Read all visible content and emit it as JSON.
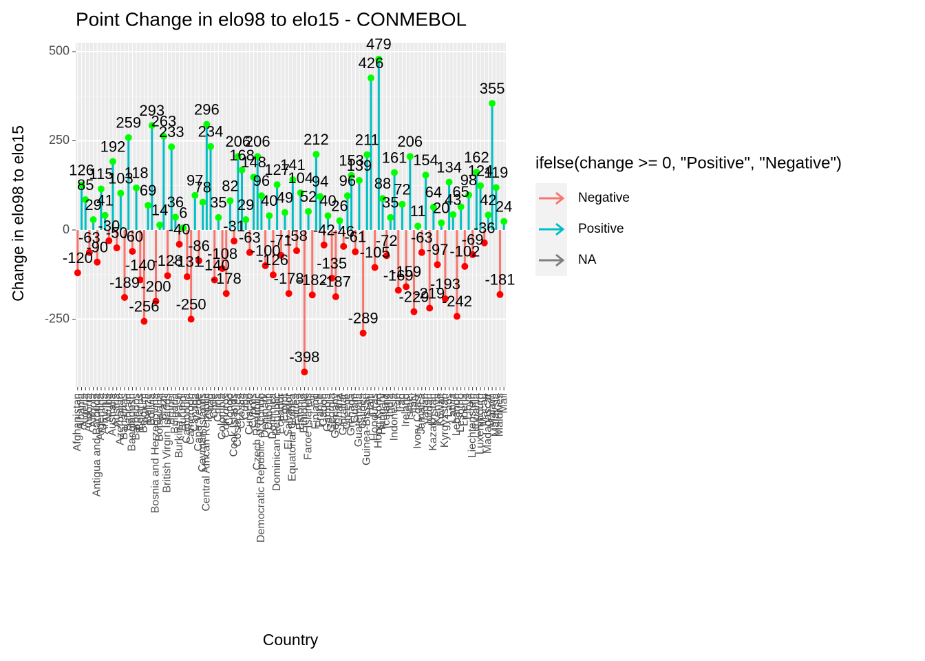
{
  "chart_data": {
    "type": "lollipop",
    "title": "Point Change in elo98 to elo15 - CONMEBOL",
    "x_label": "Country",
    "y_label": "Change in elo98 to elo15",
    "categories": [
      "Afghanistan",
      "Albania",
      "Algeria",
      "Andorra",
      "Angola",
      "Antigua and Barbuda",
      "Argentina",
      "Armenia",
      "Aruba",
      "Australia",
      "Austria",
      "Azerbaijan",
      "Bahamas",
      "Bahrain",
      "Bangladesh",
      "Barbados",
      "Belarus",
      "Belgium",
      "Belize",
      "Bolivia",
      "Bosnia and Herzegovina",
      "Botswana",
      "Brazil",
      "British Virgin Islands",
      "Brunei",
      "Bulgaria",
      "Burkina Faso",
      "Burundi",
      "Cambodia",
      "Cameroon",
      "Canada",
      "Cape Verde",
      "Cayman Islands",
      "Central African Republic",
      "Chad",
      "Chile",
      "China",
      "Colombia",
      "Comoros",
      "Congo",
      "Cook Islands",
      "Costa Rica",
      "Croatia",
      "Cuba",
      "Curacao",
      "Cyprus",
      "Czech Republic",
      "Democratic Republic of Congo",
      "Denmark",
      "Djibouti",
      "Dominica",
      "Dominican Republic",
      "Ecuador",
      "Egypt",
      "El Salvador",
      "Equatorial Guinea",
      "Eritrea",
      "Estonia",
      "Ethiopia",
      "Faroe Islands",
      "Fiji",
      "Finland",
      "France",
      "Gabon",
      "Gambia",
      "Georgia",
      "Germany",
      "Ghana",
      "Gibraltar",
      "Greece",
      "Grenada",
      "Guam",
      "Guatemala",
      "Guinea",
      "Guinea-Bissau",
      "Haiti",
      "Honduras",
      "Hong Kong",
      "Hungary",
      "Iceland",
      "India",
      "Indonesia",
      "Iran",
      "Iraq",
      "Ireland",
      "Israel",
      "Italy",
      "Ivory Coast",
      "Jamaica",
      "Japan",
      "Jordan",
      "Kazakhstan",
      "Kenya",
      "Kuwait",
      "Kyrgyzstan",
      "Laos",
      "Latvia",
      "Lebanon",
      "Lesotho",
      "Liberia",
      "Libya",
      "Liechtenstein",
      "Lithuania",
      "Luxembourg",
      "Macau",
      "Madagascar",
      "Malawi",
      "Malaysia",
      "Maldives",
      "Mali"
    ],
    "values": [
      -120,
      126,
      85,
      -63,
      29,
      -90,
      115,
      41,
      -30,
      192,
      -50,
      103,
      -189,
      259,
      -60,
      118,
      -140,
      -256,
      69,
      293,
      -200,
      14,
      263,
      -128,
      233,
      36,
      -40,
      6,
      -131,
      -250,
      97,
      -86,
      78,
      296,
      234,
      -140,
      35,
      -108,
      -178,
      82,
      -31,
      206,
      168,
      29,
      -63,
      148,
      206,
      96,
      -100,
      40,
      -126,
      127,
      -71,
      49,
      -178,
      141,
      -58,
      104,
      -398,
      52,
      -182,
      212,
      94,
      -42,
      40,
      -135,
      -187,
      26,
      -46,
      96,
      153,
      -61,
      139,
      -289,
      211,
      426,
      -105,
      479,
      88,
      -72,
      35,
      161,
      -169,
      72,
      -159,
      206,
      -229,
      11,
      -63,
      154,
      -219,
      64,
      -97,
      20,
      -193,
      134,
      43,
      -242,
      65,
      -102,
      98,
      -69,
      162,
      124,
      -36,
      42,
      355,
      119,
      -181,
      24
    ],
    "ylim": [
      -440,
      525
    ],
    "yticks": [
      -250,
      0,
      250,
      500
    ],
    "grid": true,
    "point_colors": {
      "positive": "#00FF00",
      "negative": "#FF0000"
    },
    "legend": {
      "title": "ifelse(change >= 0, \"Positive\", \"Negative\")",
      "position": "right",
      "entries": [
        {
          "name": "Negative",
          "color": "#F8766D"
        },
        {
          "name": "Positive",
          "color": "#00BFC4"
        },
        {
          "name": "NA",
          "color": "#7F7F7F"
        }
      ]
    }
  }
}
